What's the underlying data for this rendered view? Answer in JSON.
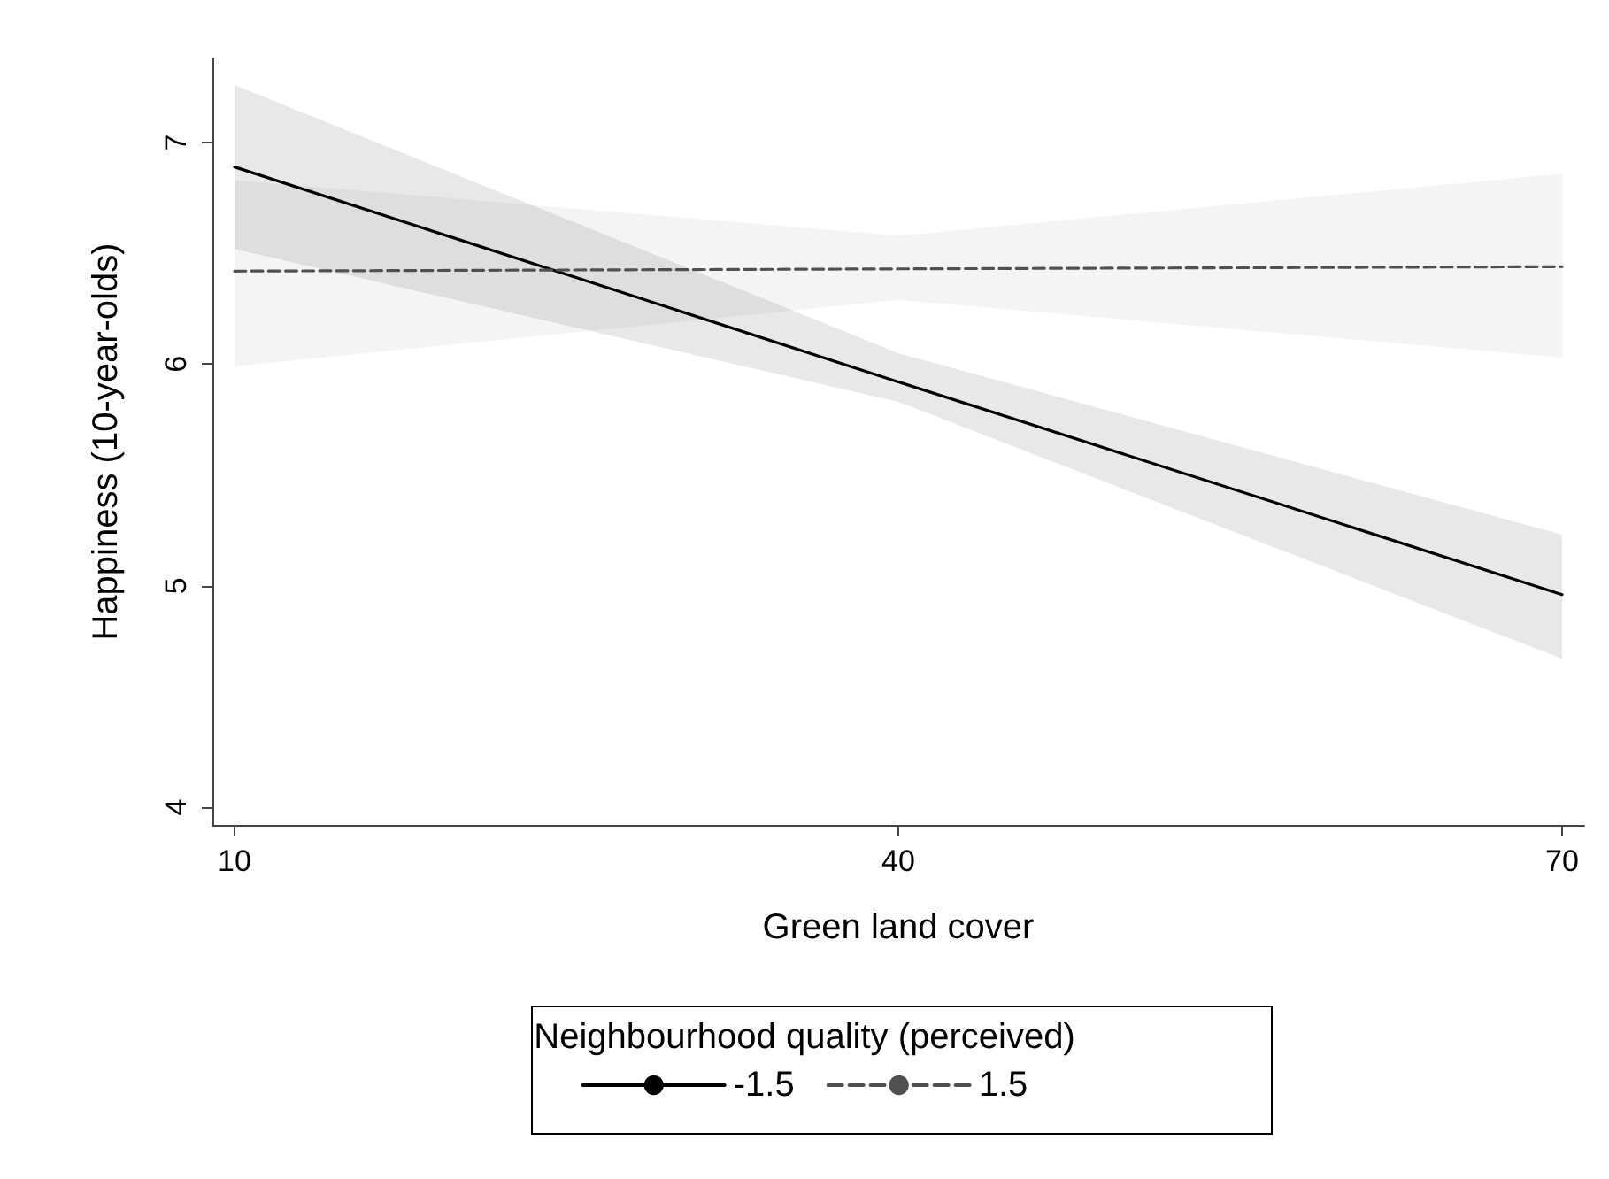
{
  "chart_data": {
    "type": "line",
    "xlabel": "Green land cover",
    "ylabel": "Happiness (10-year-olds)",
    "legend_title": "Neighbourhood quality (perceived)",
    "x": [
      10,
      40,
      70
    ],
    "series": [
      {
        "name": "-1.5",
        "color": "#000000",
        "line_style": "solid",
        "values": [
          6.89,
          5.92,
          4.96
        ],
        "lower": [
          6.52,
          5.83,
          4.67
        ],
        "upper": [
          7.26,
          6.05,
          5.23
        ]
      },
      {
        "name": "1.5",
        "color": "#505050",
        "line_style": "dashed",
        "values": [
          6.42,
          6.43,
          6.44
        ],
        "lower": [
          5.99,
          6.29,
          6.03
        ],
        "upper": [
          6.83,
          6.58,
          6.86
        ]
      }
    ],
    "xlim": [
      9,
      71
    ],
    "ylim": [
      3.92,
      7.38
    ],
    "xticks": [
      10,
      40,
      70
    ],
    "yticks": [
      4,
      5,
      6,
      7
    ],
    "grid": false,
    "legend": "bottom",
    "marker": "none"
  }
}
